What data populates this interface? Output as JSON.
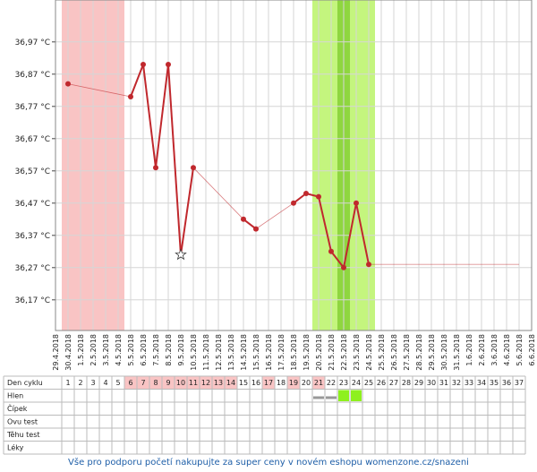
{
  "chart_data": {
    "type": "line",
    "color": "#c0282d",
    "grid": true,
    "categories": [
      "29.4.2018",
      "30.4.2018",
      "1.5.2018",
      "2.5.2018",
      "3.5.2018",
      "4.5.2018",
      "5.5.2018",
      "6.5.2018",
      "7.5.2018",
      "8.5.2018",
      "9.5.2018",
      "10.5.2018",
      "11.5.2018",
      "12.5.2018",
      "13.5.2018",
      "14.5.2018",
      "15.5.2018",
      "16.5.2018",
      "17.5.2018",
      "18.5.2018",
      "19.5.2018",
      "20.5.2018",
      "21.5.2018",
      "22.5.2018",
      "23.5.2018",
      "24.5.2018",
      "25.5.2018",
      "26.5.2018",
      "27.5.2018",
      "28.5.2018",
      "29.5.2018",
      "30.5.2018",
      "31.5.2018",
      "1.6.2018",
      "2.6.2018",
      "3.6.2018",
      "4.6.2018",
      "5.6.2018",
      "6.6.2018"
    ],
    "values": [
      null,
      36.84,
      null,
      null,
      null,
      null,
      36.8,
      36.9,
      36.58,
      36.9,
      36.31,
      36.58,
      null,
      null,
      null,
      36.42,
      36.39,
      null,
      null,
      36.47,
      36.5,
      36.49,
      36.32,
      36.27,
      36.47,
      36.28,
      null,
      null,
      null,
      null,
      null,
      null,
      null,
      null,
      null,
      null,
      null,
      null,
      null
    ],
    "markers": [
      null,
      "circle",
      null,
      null,
      null,
      null,
      "circle",
      "circle",
      "circle",
      "circle",
      "star",
      "circle",
      null,
      null,
      null,
      "circle",
      "circle",
      null,
      null,
      "circle",
      "circle",
      "circle",
      "circle",
      "circle",
      "circle",
      "circle",
      null,
      null,
      null,
      null,
      null,
      null,
      null,
      null,
      null,
      null,
      null,
      null,
      null
    ],
    "ylim": [
      36.075,
      37.1
    ],
    "yticks": [
      {
        "value": 36.97,
        "label": "36,97 °C"
      },
      {
        "value": 36.87,
        "label": "36,87 °C"
      },
      {
        "value": 36.77,
        "label": "36,77 °C"
      },
      {
        "value": 36.67,
        "label": "36,67 °C"
      },
      {
        "value": 36.57,
        "label": "36,57 °C"
      },
      {
        "value": 36.47,
        "label": "36,47 °C"
      },
      {
        "value": 36.37,
        "label": "36,37 °C"
      },
      {
        "value": 36.27,
        "label": "36,27 °C"
      },
      {
        "value": 36.17,
        "label": "36,17 °C"
      }
    ],
    "bands": [
      {
        "from": "30.4.2018",
        "to": "4.5.2018",
        "color": "#f9c4c4"
      },
      {
        "from": "20.5.2018",
        "to": "24.5.2018",
        "color": "#c4f57e"
      },
      {
        "from": "22.5.2018",
        "to": "22.5.2018",
        "color": "#8fd640"
      }
    ]
  },
  "table": {
    "row_labels": [
      "Den cyklu",
      "Hlen",
      "Čípek",
      "Ovu test",
      "Těhu test",
      "Léky"
    ],
    "cycle_days": [
      1,
      2,
      3,
      4,
      5,
      6,
      7,
      8,
      9,
      10,
      11,
      12,
      13,
      14,
      15,
      16,
      17,
      18,
      19,
      20,
      21,
      22,
      23,
      24,
      25,
      26,
      27,
      28,
      29,
      30,
      31,
      32,
      33,
      34,
      35,
      36,
      37
    ],
    "highlighted_days": [
      6,
      7,
      8,
      9,
      10,
      11,
      12,
      13,
      14,
      17,
      19,
      21
    ],
    "hlen_marks": [
      {
        "day": 21,
        "color": "#999999",
        "kind": "dash"
      },
      {
        "day": 22,
        "color": "#999999",
        "kind": "dash"
      },
      {
        "day": 23,
        "color": "#8ef01e",
        "kind": "box"
      },
      {
        "day": 24,
        "color": "#8ef01e",
        "kind": "box"
      }
    ]
  },
  "footer": {
    "link": "Vše pro podporu početí nakupujte za super ceny v novém eshopu womenzone.cz/snazeni"
  }
}
